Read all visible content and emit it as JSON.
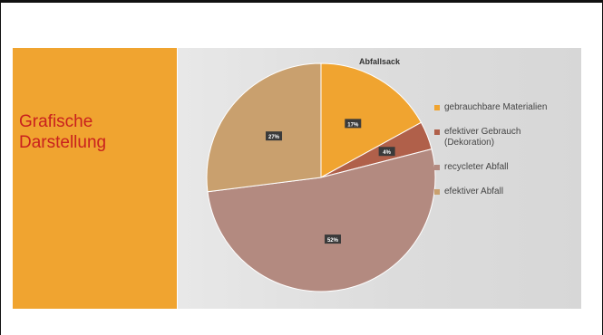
{
  "slide": {
    "title_line1": "Grafische",
    "title_line2": "Darstellung",
    "accent_color": "#f0a430",
    "title_color": "#c9211e"
  },
  "chart_data": {
    "type": "pie",
    "title": "Abfallsack",
    "slices": [
      {
        "label": "gebrauchbare Materialien",
        "value": 17,
        "display": "17%",
        "color": "#f0a430"
      },
      {
        "label": "efektiver Gebrauch (Dekoration)",
        "label_line1": "efektiver  Gebrauch",
        "label_line2": "(Dekoration)",
        "value": 4,
        "display": "4%",
        "color": "#b0604a"
      },
      {
        "label": "recycleter Abfall",
        "value": 52,
        "display": "52%",
        "color": "#b38a80"
      },
      {
        "label": "efektiver Abfall",
        "value": 27,
        "display": "27%",
        "color": "#c9a06e"
      }
    ],
    "legend_position": "right"
  }
}
